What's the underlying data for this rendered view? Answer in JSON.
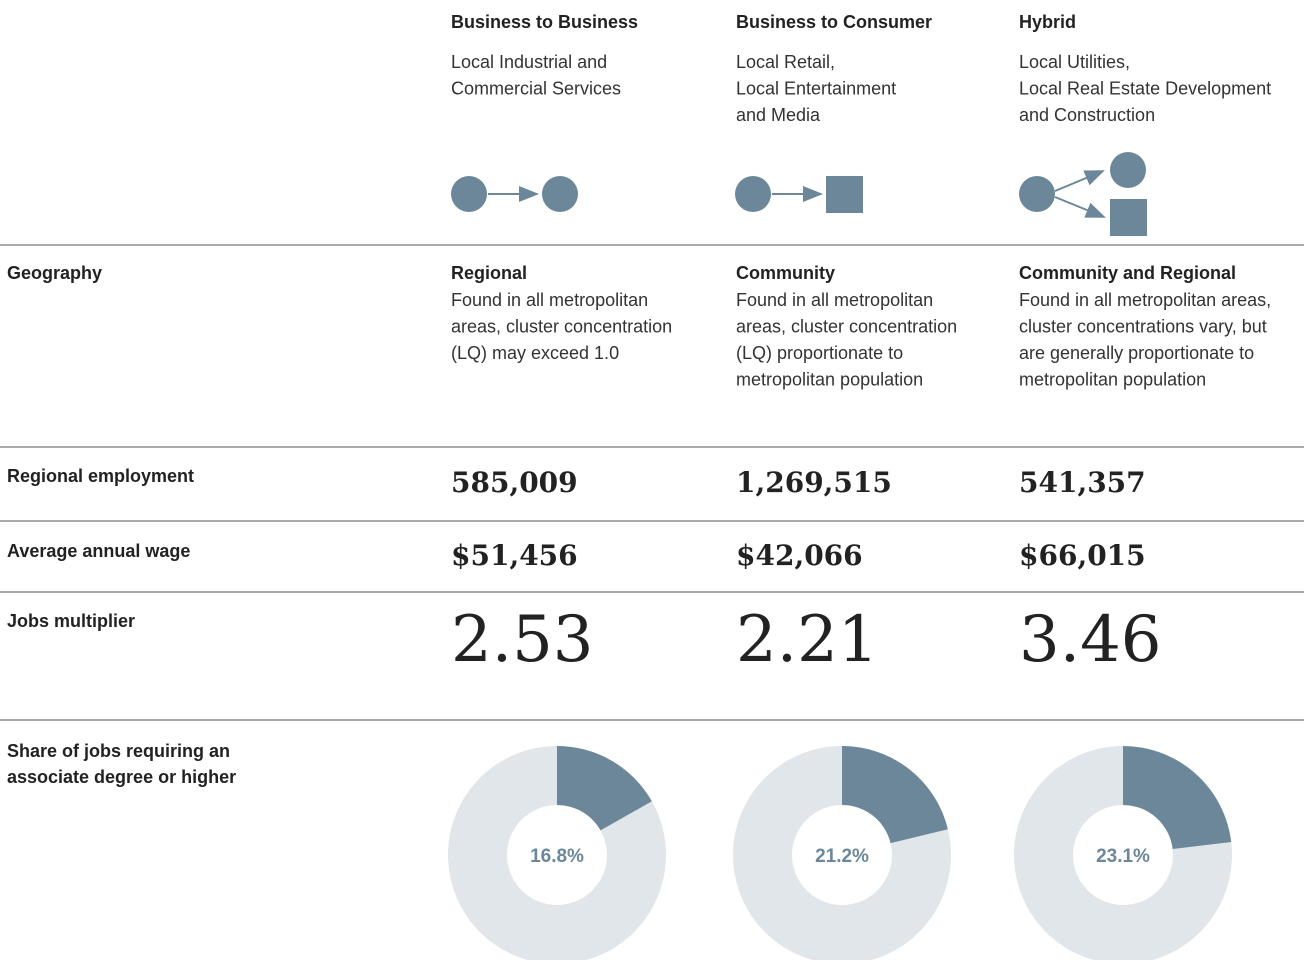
{
  "row_labels": {
    "geography": "Geography",
    "employment": "Regional employment",
    "wage": "Average annual wage",
    "multiplier": "Jobs multiplier",
    "share": [
      "Share of jobs requiring an",
      "associate degree or higher"
    ]
  },
  "columns": [
    {
      "title": "Business to Business",
      "subtitle": [
        "Local Industrial and",
        "Commercial Services"
      ],
      "geography": {
        "heading": "Regional",
        "description": [
          "Found in all metropolitan",
          "areas, cluster concentration",
          "(LQ) may exceed 1.0"
        ]
      },
      "employment": "585,009",
      "wage": "$51,456",
      "multiplier": "2.53",
      "share": {
        "value": 16.8,
        "label": "16.8%"
      }
    },
    {
      "title": "Business to Consumer",
      "subtitle": [
        "Local Retail,",
        "Local Entertainment",
        "and Media"
      ],
      "geography": {
        "heading": "Community",
        "description": [
          "Found in all metropolitan",
          "areas, cluster concentration",
          "(LQ) proportionate to",
          "metropolitan population"
        ]
      },
      "employment": "1,269,515",
      "wage": "$42,066",
      "multiplier": "2.21",
      "share": {
        "value": 21.2,
        "label": "21.2%"
      }
    },
    {
      "title": "Hybrid",
      "subtitle": [
        "Local Utilities,",
        "Local Real Estate Development",
        "and Construction"
      ],
      "geography": {
        "heading": "Community and Regional",
        "description": [
          "Found in all metropolitan areas,",
          "cluster concentrations vary, but",
          "are generally proportionate to",
          "metropolitan population"
        ]
      },
      "employment": "541,357",
      "wage": "$66,015",
      "multiplier": "3.46",
      "share": {
        "value": 23.1,
        "label": "23.1%"
      }
    }
  ]
}
